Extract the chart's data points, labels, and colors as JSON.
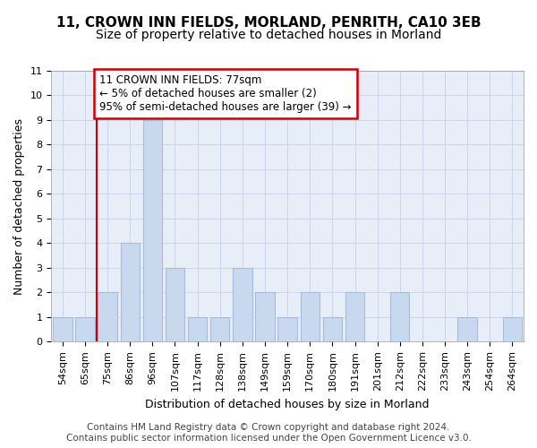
{
  "title_line1": "11, CROWN INN FIELDS, MORLAND, PENRITH, CA10 3EB",
  "title_line2": "Size of property relative to detached houses in Morland",
  "xlabel": "Distribution of detached houses by size in Morland",
  "ylabel": "Number of detached properties",
  "categories": [
    "54sqm",
    "65sqm",
    "75sqm",
    "86sqm",
    "96sqm",
    "107sqm",
    "117sqm",
    "128sqm",
    "138sqm",
    "149sqm",
    "159sqm",
    "170sqm",
    "180sqm",
    "191sqm",
    "201sqm",
    "212sqm",
    "222sqm",
    "233sqm",
    "243sqm",
    "254sqm",
    "264sqm"
  ],
  "values": [
    1,
    1,
    2,
    4,
    9,
    3,
    1,
    1,
    3,
    2,
    1,
    2,
    1,
    2,
    0,
    2,
    0,
    0,
    1,
    0,
    1
  ],
  "bar_color": "#c8d8ee",
  "bar_edgecolor": "#a8bcd8",
  "marker_line_idx": 2,
  "ylim": [
    0,
    11
  ],
  "yticks": [
    0,
    1,
    2,
    3,
    4,
    5,
    6,
    7,
    8,
    9,
    10,
    11
  ],
  "annotation_text": "11 CROWN INN FIELDS: 77sqm\n← 5% of detached houses are smaller (2)\n95% of semi-detached houses are larger (39) →",
  "annotation_box_color": "#ffffff",
  "annotation_box_edgecolor": "#cc0000",
  "red_line_color": "#cc0000",
  "footer_line1": "Contains HM Land Registry data © Crown copyright and database right 2024.",
  "footer_line2": "Contains public sector information licensed under the Open Government Licence v3.0.",
  "grid_color": "#c8d0e8",
  "background_color": "#ffffff",
  "plot_bg_color": "#e8eef8",
  "title1_fontsize": 11,
  "title2_fontsize": 10,
  "axis_label_fontsize": 9,
  "tick_fontsize": 8,
  "footer_fontsize": 7.5,
  "annotation_fontsize": 8.5
}
